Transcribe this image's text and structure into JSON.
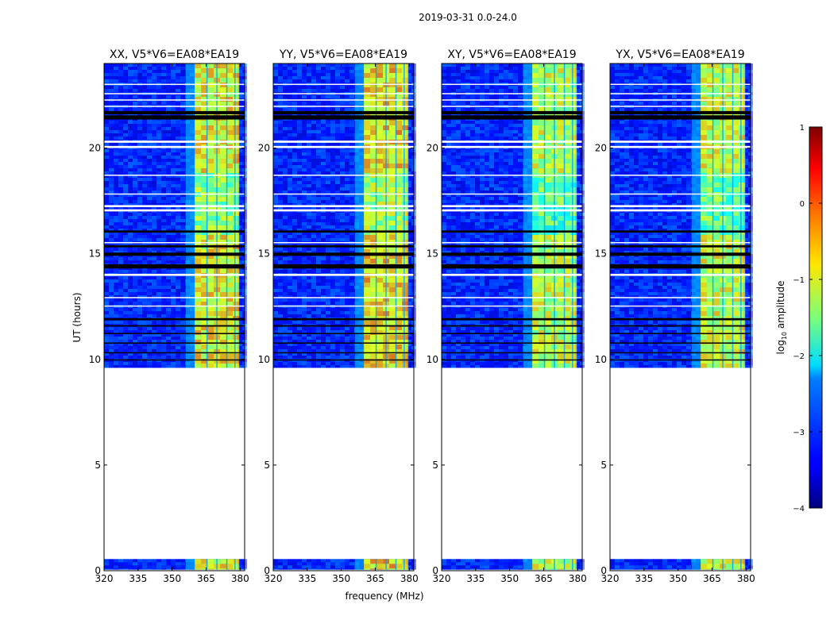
{
  "chart_data": {
    "type": "heatmap",
    "title": "2019-03-31 0.0-24.0",
    "xlabel": "frequency (MHz)",
    "ylabel": "UT (hours)",
    "xlim": [
      320,
      382
    ],
    "ylim": [
      0,
      24
    ],
    "x_ticks": [
      320,
      335,
      350,
      365,
      380
    ],
    "x_tick_labels": [
      "320",
      "335",
      "350",
      "365",
      "380"
    ],
    "y_ticks": [
      0,
      5,
      10,
      15,
      20
    ],
    "y_tick_labels": [
      "0",
      "5",
      "10",
      "15",
      "20"
    ],
    "colorbar": {
      "label_prefix": "log",
      "label_sub": "10",
      "label_suffix": " amplitude",
      "range": [
        -4,
        1
      ],
      "ticks": [
        1,
        0,
        -1,
        -2,
        -3,
        -4
      ],
      "tick_labels": [
        "1",
        "0",
        "−1",
        "−2",
        "−3",
        "−4"
      ]
    },
    "panels": [
      {
        "title": "XX, V5*V6=EA08*EA19",
        "bright_band_mhz": [
          360,
          379
        ],
        "band_level": -0.6
      },
      {
        "title": "YY, V5*V6=EA08*EA19",
        "bright_band_mhz": [
          360,
          379
        ],
        "band_level": -0.4
      },
      {
        "title": "XY, V5*V6=EA08*EA19",
        "bright_band_mhz": [
          360,
          379
        ],
        "band_level": -0.9
      },
      {
        "title": "YX, V5*V6=EA08*EA19",
        "bright_band_mhz": [
          360,
          379
        ],
        "band_level": -0.8
      }
    ],
    "data_segments_hours": [
      [
        0.05,
        0.55
      ],
      [
        9.6,
        24.0
      ]
    ],
    "gap_hours": [
      [
        0.55,
        9.6
      ]
    ],
    "background_level": -3.2
  }
}
